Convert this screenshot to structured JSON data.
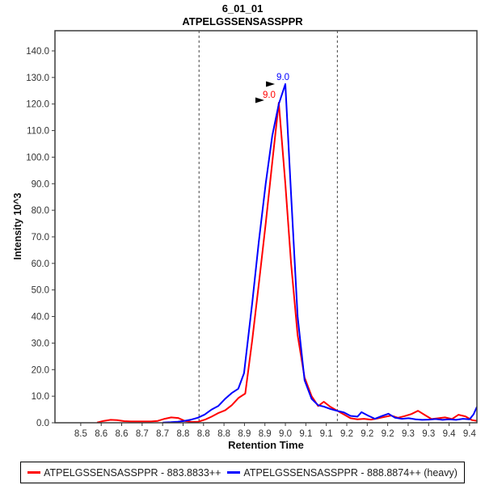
{
  "header": {
    "title": "6_01_01",
    "subtitle": "ATPELGSSENSASSPPR"
  },
  "legend": {
    "items": [
      {
        "label": "ATPELGSSENSASSPPR - 883.8833++",
        "color": "#ff0000"
      },
      {
        "label": "ATPELGSSENSASSPPR - 888.8874++ (heavy)",
        "color": "#0000ff"
      }
    ]
  },
  "colors": {
    "light_trace": "#ff0000",
    "heavy_trace": "#0000ff",
    "frame": "#3c3c3c",
    "tick_text": "#333333",
    "boundary_line": "#444444",
    "annotation_arrow": "#000000",
    "background": "#ffffff"
  },
  "chart_data": {
    "type": "line",
    "title": "6_01_01",
    "subtitle": "ATPELGSSENSASSPPR",
    "xlabel": "Retention Time",
    "ylabel": "Intensity 10^3",
    "xlim": [
      8.437,
      9.468
    ],
    "ylim": [
      0,
      147.6
    ],
    "grid": false,
    "legend_position": "bottom",
    "x_ticks": {
      "values": [
        8.5,
        8.55,
        8.6,
        8.65,
        8.7,
        8.75,
        8.8,
        8.85,
        8.9,
        8.95,
        9.0,
        9.05,
        9.1,
        9.15,
        9.2,
        9.25,
        9.3,
        9.35,
        9.4,
        9.45
      ],
      "labels": [
        "8.5",
        "8.6",
        "8.6",
        "8.7",
        "8.7",
        "8.8",
        "8.8",
        "8.8",
        "8.9",
        "8.9",
        "9.0",
        "9.1",
        "9.1",
        "9.2",
        "9.2",
        "9.2",
        "9.3",
        "9.3",
        "9.4",
        "9.4"
      ]
    },
    "y_ticks": {
      "values": [
        0,
        10,
        20,
        30,
        40,
        50,
        60,
        70,
        80,
        90,
        100,
        110,
        120,
        130,
        140
      ],
      "labels": [
        "0.0",
        "10.0",
        "20.0",
        "30.0",
        "40.0",
        "50.0",
        "60.0",
        "70.0",
        "80.0",
        "90.0",
        "100.0",
        "110.0",
        "120.0",
        "130.0",
        "140.0"
      ]
    },
    "peak_boundaries": [
      8.789,
      9.127
    ],
    "series": [
      {
        "id": "light",
        "name": "ATPELGSSENSASSPPR - 883.8833++",
        "color": "#ff0000",
        "annotation": {
          "label": "9.0",
          "time": 8.984,
          "value": 120.5
        },
        "points": [
          [
            8.54,
            0.1
          ],
          [
            8.556,
            0.7
          ],
          [
            8.573,
            1.1
          ],
          [
            8.589,
            1.0
          ],
          [
            8.606,
            0.6
          ],
          [
            8.622,
            0.5
          ],
          [
            8.639,
            0.5
          ],
          [
            8.655,
            0.5
          ],
          [
            8.672,
            0.5
          ],
          [
            8.688,
            0.7
          ],
          [
            8.705,
            1.5
          ],
          [
            8.721,
            2.0
          ],
          [
            8.738,
            1.8
          ],
          [
            8.754,
            0.7
          ],
          [
            8.771,
            0.3
          ],
          [
            8.787,
            0.4
          ],
          [
            8.804,
            1.2
          ],
          [
            8.82,
            2.3
          ],
          [
            8.837,
            3.7
          ],
          [
            8.853,
            4.7
          ],
          [
            8.869,
            6.6
          ],
          [
            8.886,
            9.4
          ],
          [
            8.902,
            11.0
          ],
          [
            8.919,
            31.0
          ],
          [
            8.935,
            52.0
          ],
          [
            8.952,
            75.0
          ],
          [
            8.968,
            98.0
          ],
          [
            8.984,
            120.5
          ],
          [
            9.0,
            90.0
          ],
          [
            9.014,
            60.0
          ],
          [
            9.03,
            33.0
          ],
          [
            9.047,
            17.0
          ],
          [
            9.064,
            10.0
          ],
          [
            9.08,
            6.3
          ],
          [
            9.094,
            7.9
          ],
          [
            9.11,
            6.0
          ],
          [
            9.126,
            4.6
          ],
          [
            9.143,
            3.1
          ],
          [
            9.159,
            1.7
          ],
          [
            9.176,
            1.3
          ],
          [
            9.192,
            1.5
          ],
          [
            9.209,
            1.2
          ],
          [
            9.225,
            1.6
          ],
          [
            9.242,
            2.2
          ],
          [
            9.258,
            2.7
          ],
          [
            9.275,
            1.9
          ],
          [
            9.291,
            2.5
          ],
          [
            9.308,
            3.3
          ],
          [
            9.324,
            4.5
          ],
          [
            9.341,
            2.9
          ],
          [
            9.357,
            1.4
          ],
          [
            9.374,
            1.7
          ],
          [
            9.39,
            2.0
          ],
          [
            9.407,
            1.4
          ],
          [
            9.423,
            3.0
          ],
          [
            9.44,
            2.4
          ],
          [
            9.456,
            1.0
          ],
          [
            9.468,
            0.7
          ]
        ]
      },
      {
        "id": "heavy",
        "name": "ATPELGSSENSASSPPR - 888.8874++ (heavy)",
        "color": "#0000ff",
        "annotation": {
          "label": "9.0",
          "time": 9.0,
          "value": 127.5
        },
        "points": [
          [
            8.7,
            0.1
          ],
          [
            8.72,
            0.2
          ],
          [
            8.737,
            0.4
          ],
          [
            8.753,
            0.7
          ],
          [
            8.77,
            1.2
          ],
          [
            8.786,
            1.9
          ],
          [
            8.803,
            3.1
          ],
          [
            8.819,
            4.9
          ],
          [
            8.836,
            6.3
          ],
          [
            8.852,
            8.9
          ],
          [
            8.869,
            11.2
          ],
          [
            8.885,
            12.8
          ],
          [
            8.899,
            18.7
          ],
          [
            8.919,
            45.0
          ],
          [
            8.935,
            68.0
          ],
          [
            8.952,
            90.0
          ],
          [
            8.968,
            108.0
          ],
          [
            8.984,
            120.0
          ],
          [
            9.0,
            127.5
          ],
          [
            9.014,
            86.0
          ],
          [
            9.03,
            40.0
          ],
          [
            9.047,
            16.0
          ],
          [
            9.064,
            9.0
          ],
          [
            9.08,
            6.6
          ],
          [
            9.094,
            6.1
          ],
          [
            9.11,
            5.2
          ],
          [
            9.126,
            4.5
          ],
          [
            9.143,
            3.9
          ],
          [
            9.159,
            2.6
          ],
          [
            9.176,
            2.3
          ],
          [
            9.186,
            4.0
          ],
          [
            9.202,
            2.7
          ],
          [
            9.219,
            1.5
          ],
          [
            9.235,
            2.5
          ],
          [
            9.252,
            3.4
          ],
          [
            9.268,
            1.9
          ],
          [
            9.285,
            1.5
          ],
          [
            9.301,
            1.7
          ],
          [
            9.318,
            1.3
          ],
          [
            9.334,
            1.1
          ],
          [
            9.351,
            1.2
          ],
          [
            9.367,
            1.4
          ],
          [
            9.384,
            1.1
          ],
          [
            9.4,
            1.3
          ],
          [
            9.417,
            1.1
          ],
          [
            9.434,
            1.5
          ],
          [
            9.45,
            1.3
          ],
          [
            9.46,
            3.2
          ],
          [
            9.468,
            6.0
          ]
        ]
      }
    ]
  }
}
